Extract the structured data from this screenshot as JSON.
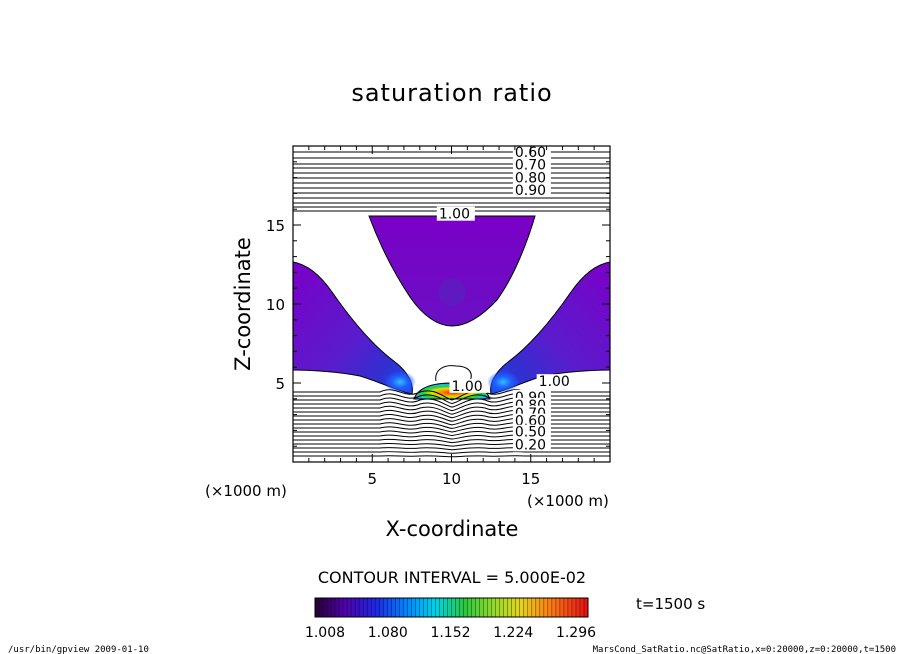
{
  "chart_data": {
    "type": "contour",
    "title": "saturation ratio",
    "xlabel": "X-coordinate",
    "ylabel": "Z-coordinate",
    "x_unit_label": "(×1000 m)",
    "y_unit_label": "(×1000 m)",
    "xlim": [
      0,
      20
    ],
    "ylim": [
      0,
      20
    ],
    "x_ticks": [
      5,
      10,
      15
    ],
    "y_ticks": [
      5,
      10,
      15
    ],
    "contour_interval_label": "CONTOUR INTERVAL = 5.000E-02",
    "time_label": "t=1500 s",
    "colorbar": {
      "min": 1.008,
      "max": 1.332,
      "labels": [
        "1.008",
        "1.080",
        "1.152",
        "1.224",
        "1.296"
      ]
    },
    "line_labels_upper": [
      {
        "text": "0.60",
        "x": 14.0,
        "y": 19.3
      },
      {
        "text": "0.70",
        "x": 14.0,
        "y": 18.5
      },
      {
        "text": "0.80",
        "x": 14.0,
        "y": 17.7
      },
      {
        "text": "0.90",
        "x": 14.0,
        "y": 16.9
      },
      {
        "text": "1.00",
        "x": 9.2,
        "y": 15.4
      }
    ],
    "line_labels_lower": [
      {
        "text": "1.00",
        "x": 10.0,
        "y": 4.5
      },
      {
        "text": "1.00",
        "x": 15.5,
        "y": 4.8
      },
      {
        "text": "0.90",
        "x": 14.0,
        "y": 3.8
      },
      {
        "text": "0.80",
        "x": 14.0,
        "y": 3.3
      },
      {
        "text": "0.70",
        "x": 14.0,
        "y": 2.8
      },
      {
        "text": "0.60",
        "x": 14.0,
        "y": 2.3
      },
      {
        "text": "0.50",
        "x": 14.0,
        "y": 1.6
      },
      {
        "text": "0.20",
        "x": 14.0,
        "y": 0.8
      }
    ]
  },
  "footer": {
    "left": "/usr/bin/gpview   2009-01-10",
    "right": "MarsCond_SatRatio.nc@SatRatio,x=0:20000,z=0:20000,t=1500"
  }
}
